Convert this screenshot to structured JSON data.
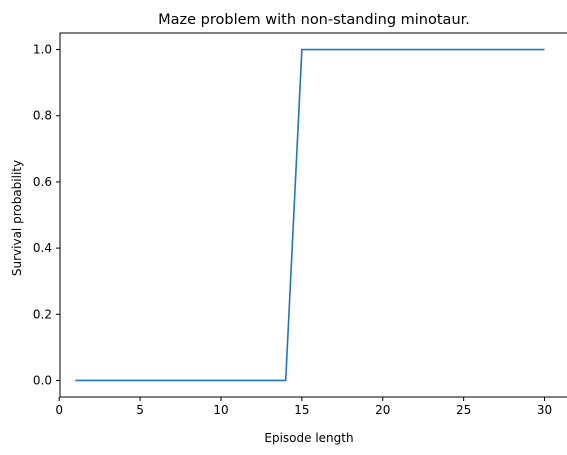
{
  "chart_data": {
    "type": "line",
    "title": "Maze problem with non-standing minotaur.",
    "xlabel": "Episode length",
    "ylabel": "Survival probability",
    "xlim": [
      0.05,
      31.45
    ],
    "ylim": [
      -0.05,
      1.05
    ],
    "xticks": [
      0,
      5,
      10,
      15,
      20,
      25,
      30
    ],
    "xtick_labels": [
      "0",
      "5",
      "10",
      "15",
      "20",
      "25",
      "30"
    ],
    "yticks": [
      0.0,
      0.2,
      0.4,
      0.6,
      0.8,
      1.0
    ],
    "ytick_labels": [
      "0.0",
      "0.2",
      "0.4",
      "0.6",
      "0.8",
      "1.0"
    ],
    "grid": false,
    "series": [
      {
        "color": "#1f77b4",
        "x": [
          1,
          2,
          3,
          4,
          5,
          6,
          7,
          8,
          9,
          10,
          11,
          12,
          13,
          14,
          15,
          16,
          17,
          18,
          19,
          20,
          21,
          22,
          23,
          24,
          25,
          26,
          27,
          28,
          29,
          30
        ],
        "y": [
          0,
          0,
          0,
          0,
          0,
          0,
          0,
          0,
          0,
          0,
          0,
          0,
          0,
          0,
          1,
          1,
          1,
          1,
          1,
          1,
          1,
          1,
          1,
          1,
          1,
          1,
          1,
          1,
          1,
          1
        ]
      }
    ]
  }
}
